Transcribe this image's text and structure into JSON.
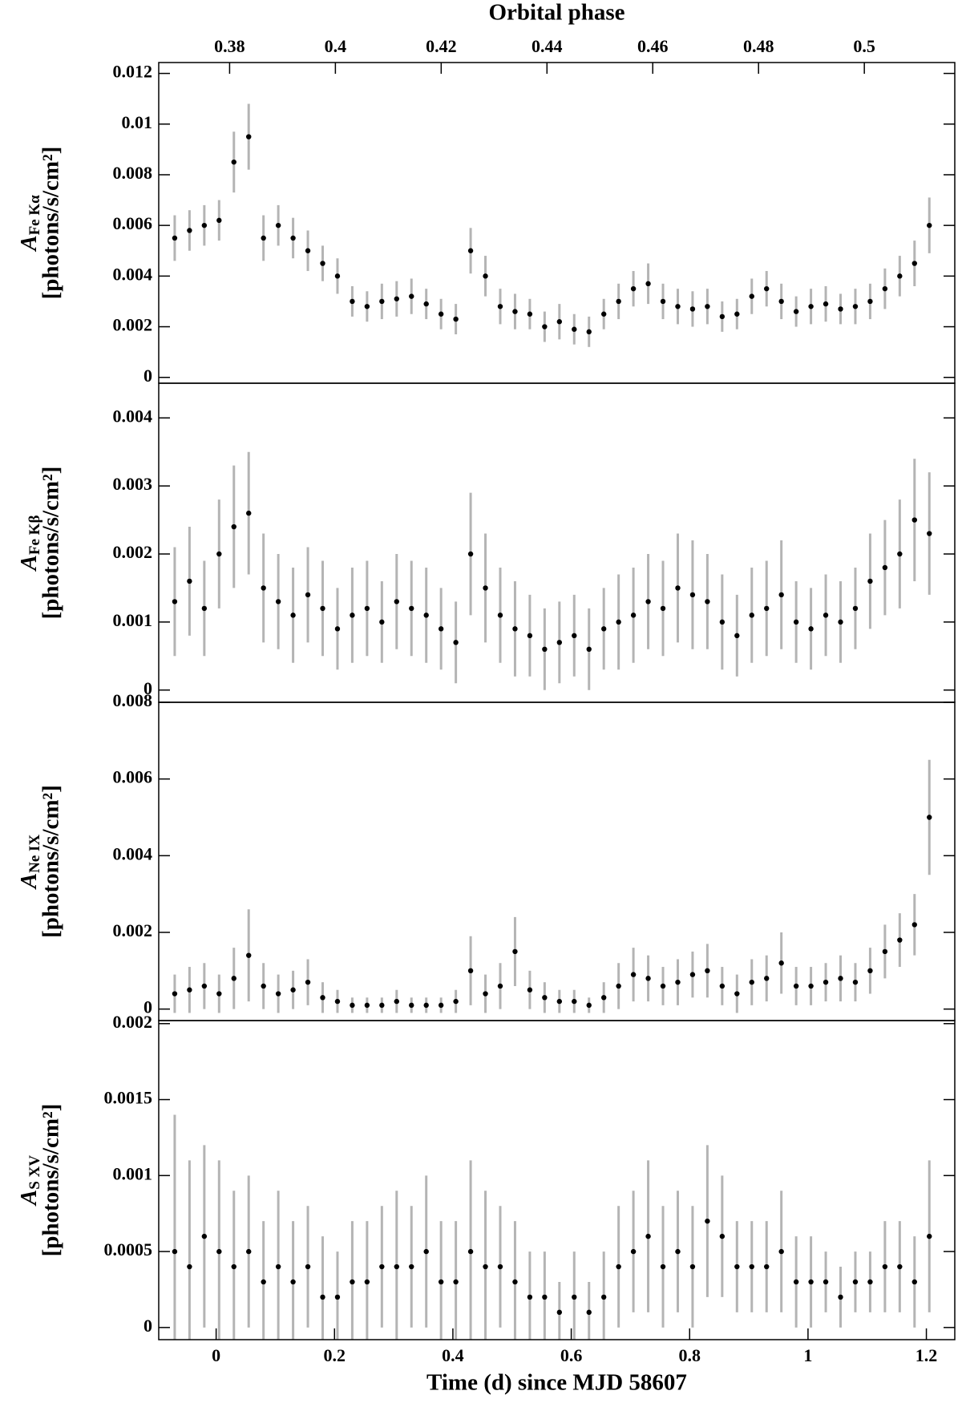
{
  "chart_data": [
    {
      "type": "scatter",
      "x2label": "Orbital phase",
      "x2lim": [
        0.3666,
        0.5171
      ],
      "x2ticks": [
        0.38,
        0.4,
        0.42,
        0.44,
        0.46,
        0.48,
        0.5
      ],
      "ylabel": {
        "symbol": "A",
        "subscript": "Fe Kα",
        "unit": "[photons/s/cm²]"
      },
      "xlim": [
        -0.097,
        1.248
      ],
      "ylim": [
        -0.00023,
        0.01243
      ],
      "yticks": [
        0,
        0.002,
        0.004,
        0.006,
        0.008,
        0.01,
        0.012
      ],
      "color": "#000000",
      "error_color": "#b4b4b4",
      "x": [
        -0.07,
        -0.045,
        -0.02,
        0.005,
        0.03,
        0.055,
        0.08,
        0.105,
        0.13,
        0.155,
        0.18,
        0.205,
        0.23,
        0.255,
        0.28,
        0.305,
        0.33,
        0.355,
        0.38,
        0.405,
        0.43,
        0.455,
        0.48,
        0.505,
        0.53,
        0.555,
        0.58,
        0.605,
        0.63,
        0.655,
        0.68,
        0.705,
        0.73,
        0.755,
        0.78,
        0.805,
        0.83,
        0.855,
        0.88,
        0.905,
        0.93,
        0.955,
        0.98,
        1.005,
        1.03,
        1.055,
        1.08,
        1.105,
        1.13,
        1.155,
        1.18,
        1.205
      ],
      "values": [
        0.0055,
        0.0058,
        0.006,
        0.0062,
        0.0085,
        0.0095,
        0.0055,
        0.006,
        0.0055,
        0.005,
        0.0045,
        0.004,
        0.003,
        0.0028,
        0.003,
        0.0031,
        0.0032,
        0.0029,
        0.0025,
        0.0023,
        0.005,
        0.004,
        0.0028,
        0.0026,
        0.0025,
        0.002,
        0.0022,
        0.0019,
        0.0018,
        0.0025,
        0.003,
        0.0035,
        0.0037,
        0.003,
        0.0028,
        0.0027,
        0.0028,
        0.0024,
        0.0025,
        0.0032,
        0.0035,
        0.003,
        0.0026,
        0.0028,
        0.0029,
        0.0027,
        0.0028,
        0.003,
        0.0035,
        0.004,
        0.0045,
        0.006
      ],
      "errors": [
        0.0009,
        0.0008,
        0.0008,
        0.0008,
        0.0012,
        0.0013,
        0.0009,
        0.0008,
        0.0008,
        0.0008,
        0.0007,
        0.0007,
        0.0006,
        0.0006,
        0.0007,
        0.0007,
        0.0007,
        0.0006,
        0.0006,
        0.0006,
        0.0009,
        0.0008,
        0.0007,
        0.0007,
        0.0006,
        0.0006,
        0.0007,
        0.0006,
        0.0006,
        0.0006,
        0.0007,
        0.0007,
        0.0008,
        0.0007,
        0.0007,
        0.0007,
        0.0007,
        0.0006,
        0.0006,
        0.0007,
        0.0007,
        0.0007,
        0.0006,
        0.0007,
        0.0007,
        0.0006,
        0.0007,
        0.0007,
        0.0008,
        0.0008,
        0.0009,
        0.0011
      ]
    },
    {
      "type": "scatter",
      "ylabel": {
        "symbol": "A",
        "subscript": "Fe Kβ",
        "unit": "[photons/s/cm²]"
      },
      "xlim": [
        -0.097,
        1.248
      ],
      "ylim": [
        -0.00018,
        0.00451
      ],
      "yticks": [
        0,
        0.001,
        0.002,
        0.003,
        0.004
      ],
      "color": "#000000",
      "error_color": "#b4b4b4",
      "x": [
        -0.07,
        -0.045,
        -0.02,
        0.005,
        0.03,
        0.055,
        0.08,
        0.105,
        0.13,
        0.155,
        0.18,
        0.205,
        0.23,
        0.255,
        0.28,
        0.305,
        0.33,
        0.355,
        0.38,
        0.405,
        0.43,
        0.455,
        0.48,
        0.505,
        0.53,
        0.555,
        0.58,
        0.605,
        0.63,
        0.655,
        0.68,
        0.705,
        0.73,
        0.755,
        0.78,
        0.805,
        0.83,
        0.855,
        0.88,
        0.905,
        0.93,
        0.955,
        0.98,
        1.005,
        1.03,
        1.055,
        1.08,
        1.105,
        1.13,
        1.155,
        1.18,
        1.205
      ],
      "values": [
        0.0013,
        0.0016,
        0.0012,
        0.002,
        0.0024,
        0.0026,
        0.0015,
        0.0013,
        0.0011,
        0.0014,
        0.0012,
        0.0009,
        0.0011,
        0.0012,
        0.001,
        0.0013,
        0.0012,
        0.0011,
        0.0009,
        0.0007,
        0.002,
        0.0015,
        0.0011,
        0.0009,
        0.0008,
        0.0006,
        0.0007,
        0.0008,
        0.0006,
        0.0009,
        0.001,
        0.0011,
        0.0013,
        0.0012,
        0.0015,
        0.0014,
        0.0013,
        0.001,
        0.0008,
        0.0011,
        0.0012,
        0.0014,
        0.001,
        0.0009,
        0.0011,
        0.001,
        0.0012,
        0.0016,
        0.0018,
        0.002,
        0.0025,
        0.0023
      ],
      "errors": [
        0.0008,
        0.0008,
        0.0007,
        0.0008,
        0.0009,
        0.0009,
        0.0008,
        0.0007,
        0.0007,
        0.0007,
        0.0007,
        0.0006,
        0.0007,
        0.0007,
        0.0006,
        0.0007,
        0.0007,
        0.0007,
        0.0006,
        0.0006,
        0.0009,
        0.0008,
        0.0007,
        0.0007,
        0.0006,
        0.0006,
        0.0006,
        0.0006,
        0.0006,
        0.0006,
        0.0007,
        0.0007,
        0.0007,
        0.0007,
        0.0008,
        0.0008,
        0.0007,
        0.0007,
        0.0006,
        0.0007,
        0.0007,
        0.0008,
        0.0006,
        0.0006,
        0.0006,
        0.0006,
        0.0006,
        0.0007,
        0.0007,
        0.0008,
        0.0009,
        0.0009
      ]
    },
    {
      "type": "scatter",
      "ylabel": {
        "symbol": "A",
        "subscript": "Ne IX",
        "unit": "[photons/s/cm²]"
      },
      "xlim": [
        -0.097,
        1.248
      ],
      "ylim": [
        -0.0003,
        0.008
      ],
      "yticks": [
        0,
        0.002,
        0.004,
        0.006,
        0.008
      ],
      "color": "#000000",
      "error_color": "#b4b4b4",
      "x": [
        -0.07,
        -0.045,
        -0.02,
        0.005,
        0.03,
        0.055,
        0.08,
        0.105,
        0.13,
        0.155,
        0.18,
        0.205,
        0.23,
        0.255,
        0.28,
        0.305,
        0.33,
        0.355,
        0.38,
        0.405,
        0.43,
        0.455,
        0.48,
        0.505,
        0.53,
        0.555,
        0.58,
        0.605,
        0.63,
        0.655,
        0.68,
        0.705,
        0.73,
        0.755,
        0.78,
        0.805,
        0.83,
        0.855,
        0.88,
        0.905,
        0.93,
        0.955,
        0.98,
        1.005,
        1.03,
        1.055,
        1.08,
        1.105,
        1.13,
        1.155,
        1.18,
        1.205
      ],
      "values": [
        0.0004,
        0.0005,
        0.0006,
        0.0004,
        0.0008,
        0.0014,
        0.0006,
        0.0004,
        0.0005,
        0.0007,
        0.0003,
        0.0002,
        0.0001,
        0.0001,
        0.0001,
        0.0002,
        0.0001,
        0.0001,
        0.0001,
        0.0002,
        0.001,
        0.0004,
        0.0006,
        0.0015,
        0.0005,
        0.0003,
        0.0002,
        0.0002,
        0.0001,
        0.0003,
        0.0006,
        0.0009,
        0.0008,
        0.0006,
        0.0007,
        0.0009,
        0.001,
        0.0006,
        0.0004,
        0.0007,
        0.0008,
        0.0012,
        0.0006,
        0.0006,
        0.0007,
        0.0008,
        0.0007,
        0.001,
        0.0015,
        0.0018,
        0.0022,
        0.005
      ],
      "errors": [
        0.0005,
        0.0006,
        0.0006,
        0.0005,
        0.0008,
        0.0012,
        0.0006,
        0.0005,
        0.0005,
        0.0006,
        0.0004,
        0.0003,
        0.0002,
        0.0002,
        0.0002,
        0.0003,
        0.0002,
        0.0002,
        0.0002,
        0.0003,
        0.0009,
        0.0005,
        0.0006,
        0.0009,
        0.0005,
        0.0004,
        0.0003,
        0.0003,
        0.0002,
        0.0004,
        0.0006,
        0.0007,
        0.0006,
        0.0005,
        0.0006,
        0.0006,
        0.0007,
        0.0005,
        0.0005,
        0.0006,
        0.0006,
        0.0008,
        0.0005,
        0.0005,
        0.0005,
        0.0006,
        0.0005,
        0.0006,
        0.0007,
        0.0007,
        0.0008,
        0.0015
      ]
    },
    {
      "type": "scatter",
      "ylabel": {
        "symbol": "A",
        "subscript": "S XV",
        "unit": "[photons/s/cm²]"
      },
      "xlabel": "Time (d) since MJD 58607",
      "xlim": [
        -0.097,
        1.248
      ],
      "xticks": [
        0,
        0.2,
        0.4,
        0.6,
        0.8,
        1,
        1.2
      ],
      "ylim": [
        -8e-05,
        0.00202
      ],
      "yticks": [
        0,
        0.0005,
        0.001,
        0.0015,
        0.002
      ],
      "color": "#000000",
      "error_color": "#b4b4b4",
      "x": [
        -0.07,
        -0.045,
        -0.02,
        0.005,
        0.03,
        0.055,
        0.08,
        0.105,
        0.13,
        0.155,
        0.18,
        0.205,
        0.23,
        0.255,
        0.28,
        0.305,
        0.33,
        0.355,
        0.38,
        0.405,
        0.43,
        0.455,
        0.48,
        0.505,
        0.53,
        0.555,
        0.58,
        0.605,
        0.63,
        0.655,
        0.68,
        0.705,
        0.73,
        0.755,
        0.78,
        0.805,
        0.83,
        0.855,
        0.88,
        0.905,
        0.93,
        0.955,
        0.98,
        1.005,
        1.03,
        1.055,
        1.08,
        1.105,
        1.13,
        1.155,
        1.18,
        1.205
      ],
      "values": [
        0.0005,
        0.0004,
        0.0006,
        0.0005,
        0.0004,
        0.0005,
        0.0003,
        0.0004,
        0.0003,
        0.0004,
        0.0002,
        0.0002,
        0.0003,
        0.0003,
        0.0004,
        0.0004,
        0.0004,
        0.0005,
        0.0003,
        0.0003,
        0.0005,
        0.0004,
        0.0004,
        0.0003,
        0.0002,
        0.0002,
        0.0001,
        0.0002,
        0.0001,
        0.0002,
        0.0004,
        0.0005,
        0.0006,
        0.0004,
        0.0005,
        0.0004,
        0.0007,
        0.0006,
        0.0004,
        0.0004,
        0.0004,
        0.0005,
        0.0003,
        0.0003,
        0.0003,
        0.0002,
        0.0003,
        0.0003,
        0.0004,
        0.0004,
        0.0003,
        0.0006
      ],
      "errors": [
        0.0009,
        0.0007,
        0.0006,
        0.0006,
        0.0005,
        0.0005,
        0.0004,
        0.0005,
        0.0004,
        0.0004,
        0.0004,
        0.0003,
        0.0004,
        0.0004,
        0.0004,
        0.0005,
        0.0004,
        0.0005,
        0.0004,
        0.0004,
        0.0006,
        0.0005,
        0.0004,
        0.0004,
        0.0003,
        0.0003,
        0.0002,
        0.0003,
        0.0002,
        0.0003,
        0.0004,
        0.0004,
        0.0005,
        0.0004,
        0.0004,
        0.0004,
        0.0005,
        0.0004,
        0.0003,
        0.0003,
        0.0003,
        0.0004,
        0.0003,
        0.0003,
        0.0002,
        0.0002,
        0.0002,
        0.0002,
        0.0003,
        0.0003,
        0.0003,
        0.0005
      ]
    }
  ]
}
